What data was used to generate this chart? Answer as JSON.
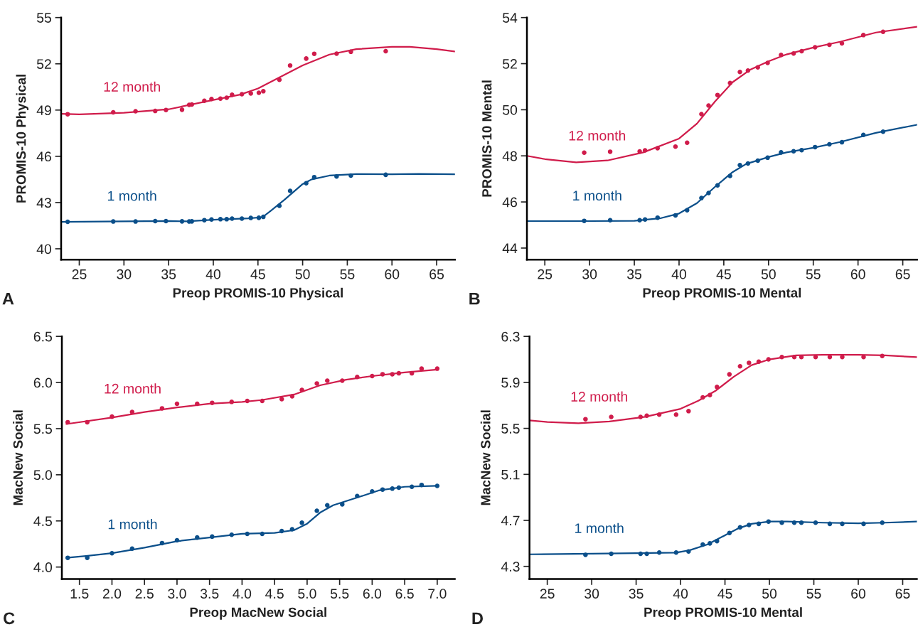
{
  "chart_data": [
    {
      "type": "scatter",
      "xlabel": "Preop PROMIS-10 Physical",
      "ylabel": "PROMIS-10 Physical",
      "annotations": [
        "A"
      ],
      "xlim": [
        22.97,
        67.05
      ],
      "ylim": [
        39.3,
        55
      ],
      "xticks": [
        25,
        30,
        35,
        40,
        45,
        50,
        55,
        60,
        65
      ],
      "yticks": [
        40,
        43,
        46,
        49,
        52,
        55
      ],
      "series": [
        {
          "type": "line",
          "name": "12 month",
          "color": "#d01c4b",
          "x": [
            23,
            25,
            30,
            35,
            40,
            43,
            45,
            47,
            50,
            53,
            56,
            60,
            62,
            65,
            67
          ],
          "values": [
            48.75,
            48.72,
            48.82,
            49.05,
            49.65,
            50.0,
            50.4,
            51.0,
            51.9,
            52.6,
            52.95,
            53.1,
            53.1,
            52.95,
            52.8
          ]
        },
        {
          "color": "#d01c4b",
          "x": [
            23.7,
            28.8,
            31.3,
            33.5,
            34.7,
            36.5,
            37.3,
            37.6,
            39.0,
            39.8,
            40.8,
            41.5,
            42.1,
            43.2,
            44.2,
            45.1,
            45.6,
            47.4,
            48.6,
            50.4,
            51.3,
            53.8,
            55.4,
            59.3
          ],
          "values": [
            48.73,
            48.85,
            48.92,
            48.94,
            49.0,
            49.02,
            49.34,
            49.36,
            49.6,
            49.72,
            49.74,
            49.8,
            49.99,
            50.03,
            50.08,
            50.12,
            50.22,
            50.96,
            51.89,
            52.34,
            52.65,
            52.66,
            52.78,
            52.82
          ]
        },
        {
          "type": "line",
          "name": "1 month",
          "color": "#0b4f8a",
          "x": [
            23,
            30,
            35,
            37,
            40,
            44,
            45.5,
            46.5,
            48,
            50,
            51,
            53,
            56,
            60,
            63,
            67
          ],
          "values": [
            41.75,
            41.78,
            41.8,
            41.78,
            41.88,
            41.98,
            42.05,
            42.5,
            43.2,
            44.2,
            44.5,
            44.75,
            44.85,
            44.83,
            44.86,
            44.83
          ]
        },
        {
          "color": "#0b4f8a",
          "x": [
            23.7,
            28.8,
            31.3,
            33.5,
            34.7,
            36.5,
            37.3,
            37.6,
            39.0,
            39.8,
            40.8,
            41.5,
            42.1,
            43.2,
            44.2,
            45.1,
            45.6,
            47.4,
            48.6,
            50.4,
            51.3,
            53.8,
            55.4,
            59.3
          ],
          "values": [
            41.75,
            41.77,
            41.77,
            41.8,
            41.8,
            41.78,
            41.77,
            41.78,
            41.86,
            41.9,
            41.92,
            41.92,
            41.96,
            41.96,
            42.0,
            42.01,
            42.07,
            42.79,
            43.76,
            44.25,
            44.65,
            44.69,
            44.75,
            44.8
          ]
        }
      ]
    },
    {
      "type": "scatter",
      "xlabel": "Preop PROMIS-10 Mental",
      "ylabel": "PROMIS-10 Mental",
      "annotations": [
        "B"
      ],
      "xlim": [
        23.0,
        66.6
      ],
      "ylim": [
        43.5,
        54
      ],
      "xticks": [
        25,
        30,
        35,
        40,
        45,
        50,
        55,
        60,
        65
      ],
      "yticks": [
        44,
        46,
        48,
        50,
        52,
        54
      ],
      "series": [
        {
          "type": "line",
          "name": "12 month",
          "color": "#d01c4b",
          "x": [
            23,
            25,
            28.5,
            32,
            36,
            40,
            42,
            44,
            46,
            48,
            50,
            52,
            55,
            58,
            62,
            66.6
          ],
          "values": [
            48.0,
            47.86,
            47.72,
            47.8,
            48.15,
            48.75,
            49.4,
            50.35,
            51.2,
            51.75,
            52.1,
            52.4,
            52.7,
            52.95,
            53.35,
            53.6
          ]
        },
        {
          "color": "#d01c4b",
          "x": [
            29.4,
            32.3,
            35.6,
            36.2,
            37.6,
            39.6,
            40.9,
            42.5,
            43.3,
            44.3,
            45.7,
            46.8,
            47.7,
            48.8,
            49.9,
            51.4,
            52.8,
            53.7,
            55.2,
            56.8,
            58.2,
            60.6,
            62.8
          ],
          "values": [
            48.14,
            48.18,
            48.19,
            48.24,
            48.33,
            48.4,
            48.57,
            49.81,
            50.18,
            50.64,
            51.16,
            51.64,
            51.7,
            51.84,
            52.03,
            52.38,
            52.44,
            52.54,
            52.71,
            52.82,
            52.88,
            53.24,
            53.38
          ]
        },
        {
          "type": "line",
          "name": "1 month",
          "color": "#0b4f8a",
          "x": [
            23,
            30,
            35,
            38,
            40,
            42,
            44,
            46,
            47.5,
            50,
            52,
            55,
            58,
            62,
            66.6
          ],
          "values": [
            45.17,
            45.17,
            45.18,
            45.3,
            45.5,
            45.95,
            46.65,
            47.3,
            47.65,
            47.95,
            48.15,
            48.35,
            48.6,
            49.0,
            49.35
          ]
        },
        {
          "color": "#0b4f8a",
          "x": [
            29.4,
            32.3,
            35.6,
            36.2,
            37.6,
            39.6,
            40.9,
            42.5,
            43.3,
            44.3,
            45.7,
            46.8,
            47.7,
            48.8,
            49.9,
            51.4,
            52.8,
            53.7,
            55.2,
            56.8,
            58.2,
            60.6,
            62.8
          ],
          "values": [
            45.18,
            45.21,
            45.21,
            45.24,
            45.32,
            45.42,
            45.64,
            46.17,
            46.39,
            46.72,
            47.13,
            47.6,
            47.67,
            47.79,
            47.92,
            48.15,
            48.2,
            48.25,
            48.38,
            48.5,
            48.59,
            48.91,
            49.05
          ]
        }
      ]
    },
    {
      "type": "scatter",
      "xlabel": "Preop MacNew Social",
      "ylabel": "MacNew Social",
      "annotations": [
        "C"
      ],
      "xlim": [
        1.23,
        7.27
      ],
      "ylim": [
        3.87,
        6.5
      ],
      "xticks": [
        1.5,
        {
          "value": 2,
          "label": "2.0"
        },
        2.5,
        {
          "value": 3,
          "label": "3.0"
        },
        3.5,
        {
          "value": 4,
          "label": "4.0"
        },
        4.5,
        {
          "value": 5,
          "label": "5.0"
        },
        5.5,
        {
          "value": 6,
          "label": "6.0"
        },
        6.5,
        {
          "value": 7,
          "label": "7.0"
        }
      ],
      "yticks": [
        {
          "value": 4,
          "label": "4.0"
        },
        4.5,
        {
          "value": 5,
          "label": "5.0"
        },
        5.5,
        {
          "value": 6,
          "label": "6.0"
        },
        6.5
      ],
      "series": [
        {
          "type": "line",
          "name": "12 month",
          "color": "#d01c4b",
          "x": [
            1.3,
            2,
            2.5,
            3,
            3.5,
            4,
            4.3,
            4.8,
            5.2,
            5.6,
            6,
            6.5,
            7
          ],
          "values": [
            5.55,
            5.62,
            5.68,
            5.73,
            5.77,
            5.79,
            5.81,
            5.87,
            5.97,
            6.03,
            6.07,
            6.11,
            6.14
          ]
        },
        {
          "color": "#d01c4b",
          "x": [
            1.32,
            1.62,
            2.0,
            2.31,
            2.77,
            3.0,
            3.31,
            3.54,
            3.84,
            4.08,
            4.31,
            4.61,
            4.77,
            4.92,
            5.15,
            5.31,
            5.54,
            5.77,
            6.0,
            6.16,
            6.31,
            6.41,
            6.61,
            6.76,
            7.0
          ],
          "values": [
            5.57,
            5.57,
            5.63,
            5.68,
            5.72,
            5.77,
            5.77,
            5.78,
            5.79,
            5.8,
            5.8,
            5.82,
            5.85,
            5.92,
            5.99,
            6.02,
            6.02,
            6.06,
            6.07,
            6.09,
            6.09,
            6.1,
            6.1,
            6.15,
            6.15
          ]
        },
        {
          "type": "line",
          "name": "1 month",
          "color": "#0b4f8a",
          "x": [
            1.3,
            1.6,
            2,
            2.5,
            3,
            3.5,
            4,
            4.5,
            4.8,
            5.0,
            5.2,
            5.4,
            5.8,
            6.1,
            6.5,
            7
          ],
          "values": [
            4.1,
            4.12,
            4.15,
            4.21,
            4.28,
            4.32,
            4.36,
            4.37,
            4.4,
            4.47,
            4.59,
            4.67,
            4.76,
            4.83,
            4.87,
            4.88
          ]
        },
        {
          "color": "#0b4f8a",
          "x": [
            1.32,
            1.62,
            2.0,
            2.31,
            2.77,
            3.0,
            3.31,
            3.54,
            3.84,
            4.08,
            4.31,
            4.61,
            4.77,
            4.92,
            5.15,
            5.31,
            5.54,
            5.77,
            6.0,
            6.16,
            6.31,
            6.41,
            6.61,
            6.76,
            7.0
          ],
          "values": [
            4.1,
            4.1,
            4.15,
            4.2,
            4.26,
            4.29,
            4.32,
            4.33,
            4.35,
            4.36,
            4.36,
            4.39,
            4.41,
            4.48,
            4.61,
            4.67,
            4.68,
            4.77,
            4.82,
            4.84,
            4.85,
            4.86,
            4.87,
            4.89,
            4.88
          ]
        }
      ]
    },
    {
      "type": "scatter",
      "xlabel": "Preop PROMIS-10 Mental",
      "ylabel": "MacNew Social",
      "annotations": [
        "D"
      ],
      "xlim": [
        23.0,
        66.6
      ],
      "ylim": [
        4.19,
        6.3
      ],
      "xticks": [
        25,
        30,
        35,
        40,
        45,
        50,
        55,
        60,
        65
      ],
      "yticks": [
        4.3,
        4.7,
        5.1,
        5.5,
        5.9,
        6.3
      ],
      "series": [
        {
          "type": "line",
          "name": "12 month",
          "color": "#d01c4b",
          "x": [
            23,
            25,
            28.5,
            32,
            36,
            40,
            42,
            44,
            46,
            48,
            50,
            53,
            56,
            60,
            63,
            66.6
          ],
          "values": [
            5.57,
            5.555,
            5.545,
            5.56,
            5.6,
            5.67,
            5.74,
            5.83,
            5.95,
            6.05,
            6.1,
            6.135,
            6.14,
            6.14,
            6.135,
            6.12
          ]
        },
        {
          "color": "#d01c4b",
          "x": [
            29.3,
            32.2,
            35.5,
            36.2,
            37.6,
            39.5,
            40.9,
            42.5,
            43.3,
            44.1,
            45.5,
            46.7,
            47.7,
            48.8,
            49.9,
            51.4,
            52.8,
            53.6,
            55.2,
            56.8,
            58.2,
            60.6,
            62.7
          ],
          "values": [
            5.58,
            5.6,
            5.6,
            5.61,
            5.62,
            5.62,
            5.65,
            5.77,
            5.79,
            5.86,
            5.97,
            6.04,
            6.07,
            6.08,
            6.1,
            6.12,
            6.12,
            6.12,
            6.12,
            6.12,
            6.12,
            6.12,
            6.13
          ]
        },
        {
          "type": "line",
          "name": "1 month",
          "color": "#0b4f8a",
          "x": [
            23,
            30,
            35,
            39.5,
            41,
            43,
            45,
            46.5,
            48,
            50,
            52,
            56,
            60,
            63,
            66.6
          ],
          "values": [
            4.405,
            4.41,
            4.415,
            4.42,
            4.44,
            4.49,
            4.57,
            4.63,
            4.67,
            4.69,
            4.69,
            4.68,
            4.675,
            4.68,
            4.69
          ]
        },
        {
          "color": "#0b4f8a",
          "x": [
            29.3,
            32.2,
            35.5,
            36.2,
            37.6,
            39.5,
            40.9,
            42.5,
            43.3,
            44.1,
            45.5,
            46.7,
            47.7,
            48.8,
            49.9,
            51.4,
            52.8,
            53.6,
            55.2,
            56.8,
            58.2,
            60.6,
            62.7
          ],
          "values": [
            4.4,
            4.41,
            4.41,
            4.41,
            4.42,
            4.42,
            4.43,
            4.49,
            4.5,
            4.52,
            4.59,
            4.64,
            4.66,
            4.67,
            4.69,
            4.68,
            4.68,
            4.68,
            4.68,
            4.67,
            4.67,
            4.67,
            4.68
          ]
        }
      ]
    }
  ]
}
